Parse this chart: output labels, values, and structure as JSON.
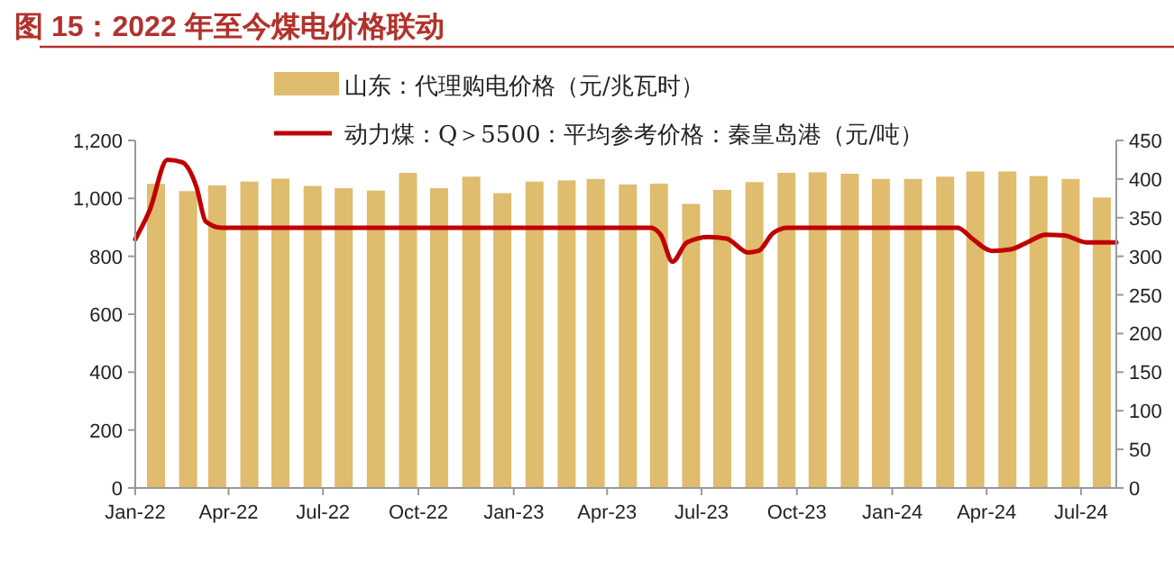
{
  "chart_data": {
    "type": "bar",
    "title": "图 15：2022 年至今煤电价格联动",
    "legend": "top",
    "xlim": [
      "2022-01-01",
      "2024-08-04"
    ],
    "xticks": [
      {
        "value": "2022-01-01",
        "label": "Jan-22"
      },
      {
        "value": "2022-04-01",
        "label": "Apr-22"
      },
      {
        "value": "2022-07-01",
        "label": "Jul-22"
      },
      {
        "value": "2022-10-01",
        "label": "Oct-22"
      },
      {
        "value": "2023-01-01",
        "label": "Jan-23"
      },
      {
        "value": "2023-04-01",
        "label": "Apr-23"
      },
      {
        "value": "2023-07-01",
        "label": "Jul-23"
      },
      {
        "value": "2023-10-01",
        "label": "Oct-23"
      },
      {
        "value": "2024-01-01",
        "label": "Jan-24"
      },
      {
        "value": "2024-04-01",
        "label": "Apr-24"
      },
      {
        "value": "2024-07-01",
        "label": "Jul-24"
      }
    ],
    "ylim": [
      0,
      1200
    ],
    "yticks": [
      0,
      200,
      400,
      600,
      800,
      {
        "value": 1000,
        "label": "1,000"
      },
      {
        "value": 1200,
        "label": "1,200"
      }
    ],
    "y2lim": [
      0,
      450
    ],
    "y2ticks": [
      0,
      50,
      100,
      150,
      200,
      250,
      300,
      350,
      400,
      450
    ],
    "series": [
      {
        "name": "山东：代理购电价格（元/兆瓦时）",
        "color": "#dfbc6e",
        "x": [
          "2022-01-21",
          "2022-02-21",
          "2022-03-21",
          "2022-04-21",
          "2022-05-21",
          "2022-06-21",
          "2022-07-21",
          "2022-08-21",
          "2022-09-21",
          "2022-10-21",
          "2022-11-21",
          "2022-12-21",
          "2023-01-21",
          "2023-02-21",
          "2023-03-21",
          "2023-04-21",
          "2023-05-21",
          "2023-06-21",
          "2023-07-21",
          "2023-08-21",
          "2023-09-21",
          "2023-10-21",
          "2023-11-21",
          "2023-12-21",
          "2024-01-21",
          "2024-02-21",
          "2024-03-21",
          "2024-04-21",
          "2024-05-21",
          "2024-06-21",
          "2024-07-21"
        ],
        "values": [
          1050,
          1025,
          1045,
          1058,
          1068,
          1043,
          1035,
          1027,
          1088,
          1035,
          1075,
          1018,
          1058,
          1062,
          1067,
          1048,
          1051,
          981,
          1029,
          1056,
          1088,
          1090,
          1085,
          1067,
          1067,
          1075,
          1093,
          1093,
          1077,
          1067,
          1003
        ]
      },
      {
        "name": "动力煤：Q＞5500：平均参考价格：秦皇岛港（元/吨）",
        "type": "line",
        "axis": "y2",
        "color": "#c00000",
        "x": [
          "2022-01-01",
          "2022-01-15",
          "2022-02-01",
          "2022-02-15",
          "2022-03-01",
          "2022-03-10",
          "2022-03-25",
          "2023-05-13",
          "2023-05-23",
          "2023-06-03",
          "2023-06-17",
          "2023-07-08",
          "2023-07-25",
          "2023-08-15",
          "2023-08-25",
          "2023-09-08",
          "2023-09-22",
          "2024-03-04",
          "2024-03-18",
          "2024-04-06",
          "2024-04-24",
          "2024-05-10",
          "2024-05-28",
          "2024-06-15",
          "2024-07-06",
          "2024-08-04"
        ],
        "values": [
          322,
          360,
          425,
          422,
          390,
          345,
          337,
          337,
          327,
          293,
          318,
          325,
          323,
          305,
          307,
          330,
          337,
          337,
          323,
          307,
          309,
          318,
          328,
          327,
          318,
          318
        ]
      }
    ]
  }
}
